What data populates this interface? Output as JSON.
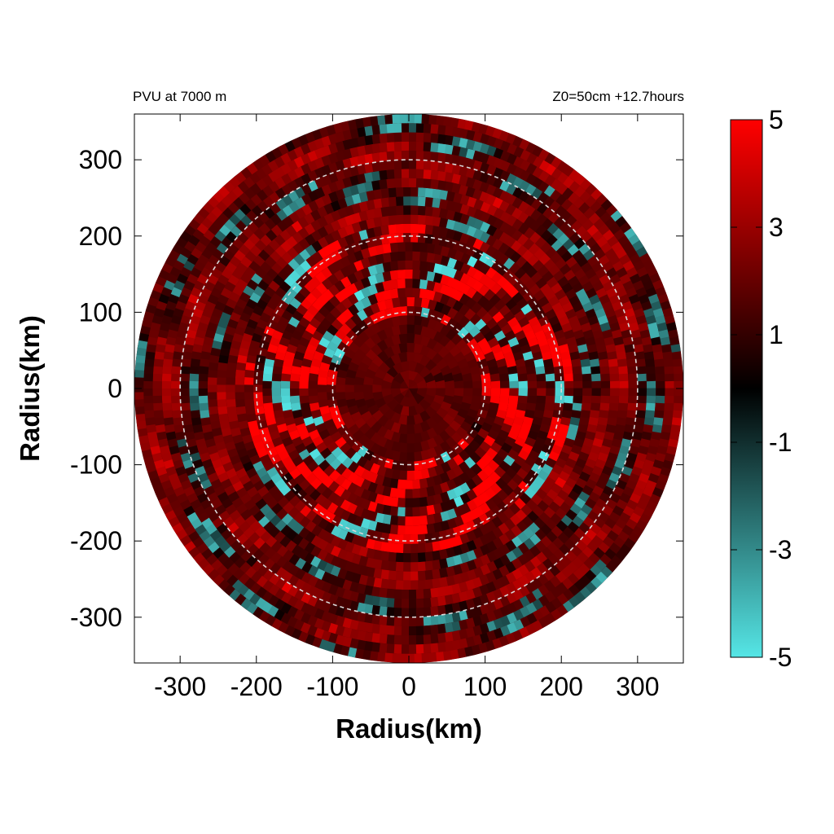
{
  "header": {
    "left_text": "PVU at  7000 m",
    "right_text": "Z0=50cm  +12.7hours"
  },
  "chart_data": {
    "type": "heatmap",
    "projection": "polar field shown on cartesian radius axes",
    "xlabel": "Radius(km)",
    "ylabel": "Radius(km)",
    "xlim": [
      -360,
      360
    ],
    "ylim": [
      -360,
      360
    ],
    "xticks": [
      -300,
      -200,
      -100,
      0,
      100,
      200,
      300
    ],
    "yticks": [
      300,
      200,
      100,
      0,
      -100,
      -200,
      -300
    ],
    "data_radius_km": 360,
    "reference_circles_km": [
      100,
      200,
      300
    ],
    "reference_circle_style": "white dashed",
    "colorbar": {
      "range": [
        -5,
        5
      ],
      "tick_labels": [
        "5",
        "3",
        "1",
        "-1",
        "-3",
        "-5"
      ],
      "tick_values": [
        5,
        3,
        1,
        -1,
        -3,
        -5
      ],
      "colors": {
        "max": "#ff0000",
        "mid": "#000000",
        "min": "#55e6e6"
      }
    },
    "field_description": {
      "core_0_to_100km": "moderate positive (dark red, ~2)",
      "ring_100_to_200km": "strong positive bands (bright red ~5) interleaved with negative cyan patches (~-4)",
      "ring_200_to_360km": "moderate positive (dark red ~1-3) with scattered negative teal/cyan streaks"
    }
  }
}
